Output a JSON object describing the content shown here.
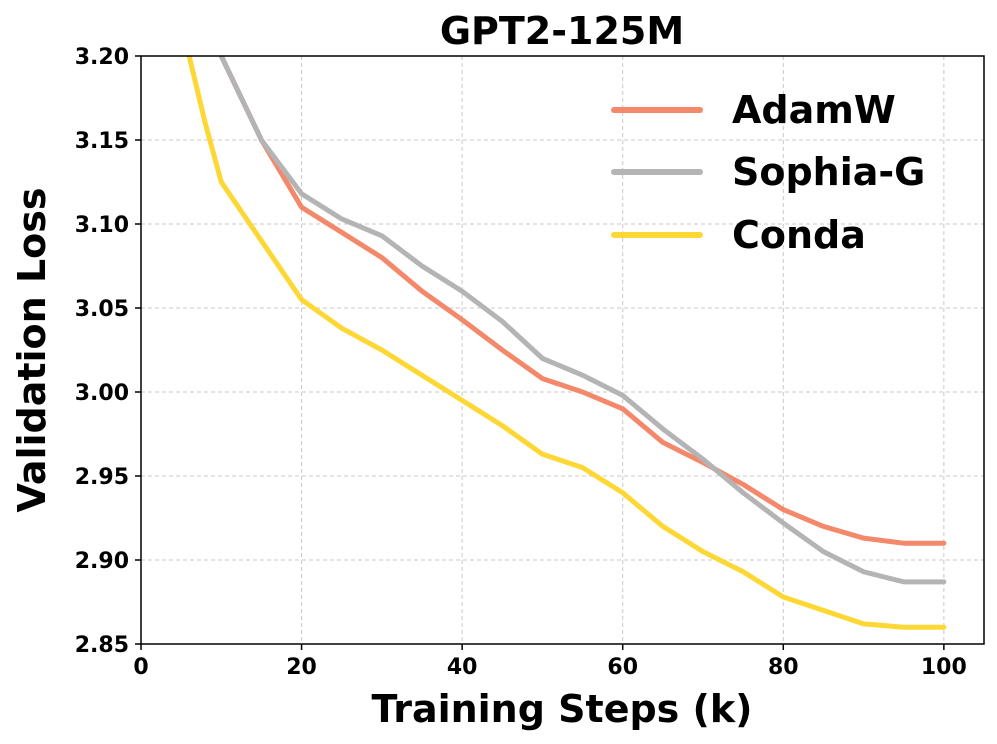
{
  "chart_data": {
    "type": "line",
    "title": "GPT2-125M",
    "xlabel": "Training Steps (k)",
    "ylabel": "Validation Loss",
    "xlim": [
      0,
      105
    ],
    "ylim": [
      2.85,
      3.2
    ],
    "xticks": [
      0,
      20,
      40,
      60,
      80,
      100
    ],
    "yticks": [
      2.85,
      2.9,
      2.95,
      3.0,
      3.05,
      3.1,
      3.15,
      3.2
    ],
    "xtick_labels": [
      "0",
      "20",
      "40",
      "60",
      "80",
      "100"
    ],
    "ytick_labels": [
      "2.85",
      "2.90",
      "2.95",
      "3.00",
      "3.05",
      "3.10",
      "3.15",
      "3.20"
    ],
    "grid": true,
    "legend_position": "top-right",
    "x": [
      10,
      15,
      20,
      25,
      30,
      35,
      40,
      45,
      50,
      55,
      60,
      65,
      70,
      75,
      80,
      85,
      90,
      95,
      100
    ],
    "series": [
      {
        "name": "AdamW",
        "color": "#F4886A",
        "values": [
          3.2,
          3.15,
          3.11,
          3.095,
          3.08,
          3.06,
          3.043,
          3.025,
          3.008,
          3.0,
          2.99,
          2.97,
          2.958,
          2.945,
          2.93,
          2.92,
          2.913,
          2.91,
          2.91
        ]
      },
      {
        "name": "Sophia-G",
        "color": "#B4B4B4",
        "values": [
          3.2,
          3.15,
          3.118,
          3.103,
          3.093,
          3.075,
          3.06,
          3.042,
          3.02,
          3.01,
          2.998,
          2.978,
          2.96,
          2.94,
          2.922,
          2.905,
          2.893,
          2.887,
          2.887
        ]
      },
      {
        "name": "Conda",
        "color": "#FDD835",
        "values": [
          3.125,
          3.09,
          3.055,
          3.038,
          3.025,
          3.01,
          2.995,
          2.98,
          2.963,
          2.955,
          2.94,
          2.92,
          2.905,
          2.893,
          2.878,
          2.87,
          2.862,
          2.86,
          2.86
        ]
      }
    ],
    "extra_points": {
      "x": [
        6,
        8
      ],
      "values": [
        3.2,
        3.16
      ]
    }
  }
}
